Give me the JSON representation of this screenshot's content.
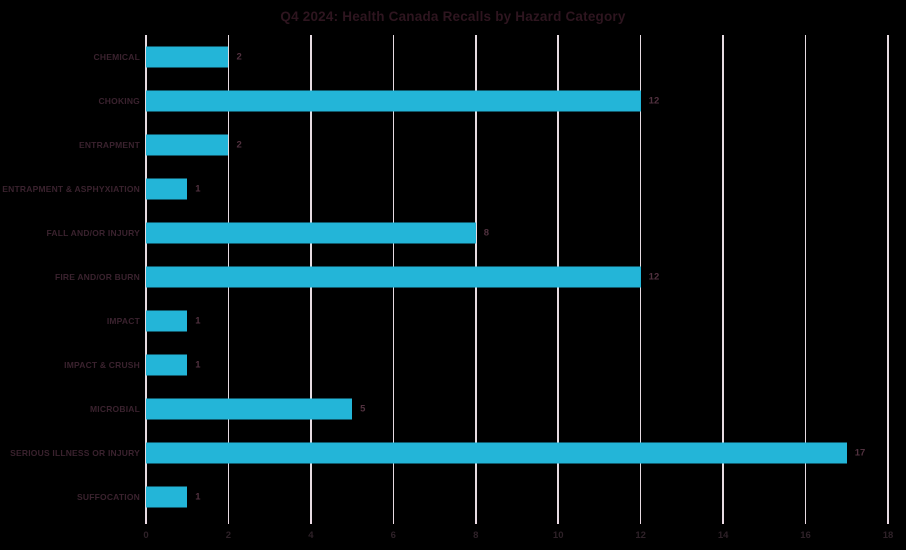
{
  "chart_data": {
    "type": "bar",
    "orientation": "horizontal",
    "title": "Q4 2024: Health Canada Recalls by Hazard Category",
    "categories": [
      "CHEMICAL",
      "CHOKING",
      "ENTRAPMENT",
      "ENTRAPMENT & ASPHYXIATION",
      "FALL AND/OR INJURY",
      "FIRE AND/OR BURN",
      "IMPACT",
      "IMPACT & CRUSH",
      "MICROBIAL",
      "SERIOUS ILLNESS OR INJURY",
      "SUFFOCATION"
    ],
    "values": [
      2,
      12,
      2,
      1,
      8,
      12,
      1,
      1,
      5,
      17,
      1
    ],
    "xlabel": "",
    "ylabel": "",
    "xlim": [
      0,
      18
    ],
    "x_ticks": [
      0,
      2,
      4,
      6,
      8,
      10,
      12,
      14,
      16,
      18
    ],
    "grid": "vertical-on",
    "data_labels": true,
    "legend": "none",
    "colors": {
      "bar": "#23B5D8",
      "background": "#000000",
      "gridline": "#E6DBE1",
      "tick_mark": "#EBD9E3",
      "title_text": "#2E151F",
      "category_text": "#3A222E",
      "value_text": "#51313F",
      "tick_text": "#2E2128"
    }
  }
}
